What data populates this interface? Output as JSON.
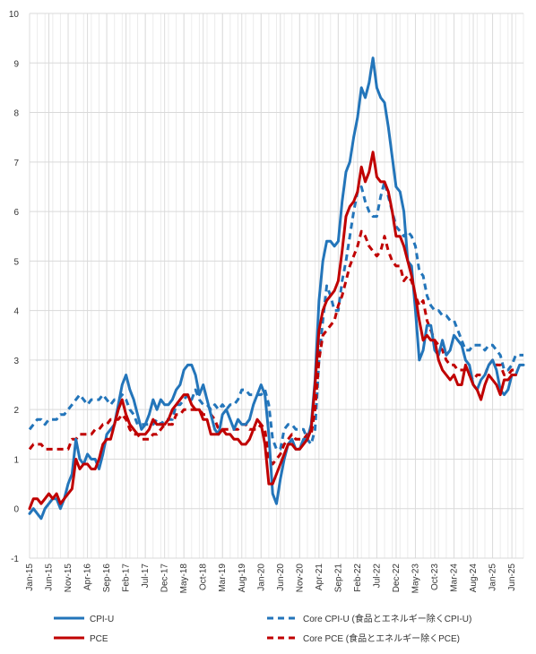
{
  "chart_data": {
    "type": "line",
    "title": "",
    "xlabel": "",
    "ylabel": "",
    "ylim": [
      -1,
      10
    ],
    "yticks": [
      -1,
      0,
      1,
      2,
      3,
      4,
      5,
      6,
      7,
      8,
      9,
      10
    ],
    "grid": true,
    "legend_position": "bottom",
    "x_tick_labels": [
      "Jan-15",
      "Jun-15",
      "Nov-15",
      "Apr-16",
      "Sep-16",
      "Feb-17",
      "Jul-17",
      "Dec-17",
      "May-18",
      "Oct-18",
      "Mar-19",
      "Aug-19",
      "Jan-20",
      "Jun-20",
      "Nov-20",
      "Apr-21",
      "Sep-21",
      "Feb-22",
      "Jul-22",
      "Dec-22",
      "May-23",
      "Oct-23",
      "Mar-24",
      "Aug-24",
      "Jan-25",
      "Jun-25"
    ],
    "series": [
      {
        "name": "CPI-U",
        "color": "#2375BA",
        "dashed": false,
        "values": [
          -0.1,
          0.0,
          -0.1,
          -0.2,
          0.0,
          0.1,
          0.2,
          0.2,
          0.0,
          0.2,
          0.5,
          0.7,
          1.4,
          1.0,
          0.9,
          1.1,
          1.0,
          1.0,
          0.8,
          1.1,
          1.5,
          1.6,
          1.7,
          2.1,
          2.5,
          2.7,
          2.4,
          2.2,
          1.9,
          1.6,
          1.7,
          1.9,
          2.2,
          2.0,
          2.2,
          2.1,
          2.1,
          2.2,
          2.4,
          2.5,
          2.8,
          2.9,
          2.9,
          2.7,
          2.3,
          2.5,
          2.2,
          1.9,
          1.6,
          1.5,
          1.9,
          2.0,
          1.8,
          1.6,
          1.8,
          1.7,
          1.7,
          1.8,
          2.1,
          2.3,
          2.5,
          2.3,
          1.5,
          0.3,
          0.1,
          0.6,
          1.0,
          1.3,
          1.4,
          1.2,
          1.2,
          1.4,
          1.4,
          1.7,
          2.6,
          4.2,
          5.0,
          5.4,
          5.4,
          5.3,
          5.4,
          6.2,
          6.8,
          7.0,
          7.5,
          7.9,
          8.5,
          8.3,
          8.6,
          9.1,
          8.5,
          8.3,
          8.2,
          7.7,
          7.1,
          6.5,
          6.4,
          6.0,
          5.0,
          4.9,
          4.0,
          3.0,
          3.2,
          3.7,
          3.7,
          3.2,
          3.1,
          3.4,
          3.1,
          3.2,
          3.5,
          3.4,
          3.3,
          3.0,
          2.9,
          2.5,
          2.4,
          2.6,
          2.7,
          2.9,
          3.0,
          2.8,
          2.4,
          2.3,
          2.4,
          2.7,
          2.7,
          2.9,
          2.9
        ]
      },
      {
        "name": "Core CPI-U (食品とエネルギー除くCPI-U)",
        "color": "#2375BA",
        "dashed": true,
        "values": [
          1.6,
          1.7,
          1.8,
          1.8,
          1.7,
          1.8,
          1.8,
          1.8,
          1.9,
          1.9,
          2.0,
          2.1,
          2.2,
          2.3,
          2.2,
          2.1,
          2.2,
          2.2,
          2.2,
          2.3,
          2.2,
          2.1,
          2.2,
          2.2,
          2.3,
          2.2,
          2.0,
          1.9,
          1.7,
          1.7,
          1.7,
          1.7,
          1.7,
          1.8,
          1.7,
          1.8,
          1.8,
          1.8,
          2.1,
          2.1,
          2.2,
          2.3,
          2.2,
          2.4,
          2.2,
          2.1,
          2.1,
          2.0,
          2.1,
          2.0,
          2.1,
          2.0,
          2.1,
          2.1,
          2.2,
          2.4,
          2.4,
          2.3,
          2.3,
          2.3,
          2.3,
          2.4,
          2.1,
          1.4,
          1.2,
          1.2,
          1.6,
          1.7,
          1.7,
          1.6,
          1.6,
          1.6,
          1.4,
          1.3,
          1.6,
          3.0,
          3.8,
          4.5,
          4.3,
          4.0,
          4.0,
          4.6,
          5.0,
          5.5,
          6.0,
          6.4,
          6.5,
          6.2,
          6.0,
          5.9,
          5.9,
          6.3,
          6.6,
          6.3,
          6.0,
          5.7,
          5.6,
          5.5,
          5.6,
          5.5,
          5.3,
          4.8,
          4.7,
          4.3,
          4.1,
          4.0,
          4.0,
          3.9,
          3.9,
          3.8,
          3.8,
          3.6,
          3.4,
          3.2,
          3.2,
          3.3,
          3.3,
          3.3,
          3.2,
          3.3,
          3.3,
          3.2,
          3.1,
          2.8,
          2.8,
          2.9,
          3.1,
          3.1,
          3.1
        ]
      },
      {
        "name": "PCE",
        "color": "#C00000",
        "dashed": false,
        "values": [
          0.0,
          0.2,
          0.2,
          0.1,
          0.2,
          0.3,
          0.2,
          0.3,
          0.1,
          0.2,
          0.3,
          0.4,
          1.0,
          0.8,
          0.9,
          0.9,
          0.8,
          0.8,
          1.0,
          1.3,
          1.4,
          1.4,
          1.7,
          2.0,
          2.2,
          1.9,
          1.7,
          1.6,
          1.5,
          1.5,
          1.5,
          1.6,
          1.8,
          1.7,
          1.7,
          1.7,
          1.8,
          2.0,
          2.1,
          2.2,
          2.3,
          2.3,
          2.1,
          2.0,
          2.0,
          1.8,
          1.8,
          1.5,
          1.5,
          1.5,
          1.6,
          1.5,
          1.5,
          1.4,
          1.4,
          1.3,
          1.3,
          1.4,
          1.6,
          1.8,
          1.7,
          1.3,
          0.5,
          0.5,
          0.7,
          0.9,
          1.1,
          1.3,
          1.3,
          1.2,
          1.2,
          1.3,
          1.4,
          1.6,
          2.5,
          3.6,
          4.0,
          4.2,
          4.3,
          4.4,
          4.6,
          5.2,
          5.9,
          6.1,
          6.2,
          6.4,
          6.9,
          6.6,
          6.8,
          7.2,
          6.7,
          6.6,
          6.6,
          6.4,
          6.0,
          5.5,
          5.5,
          5.3,
          5.0,
          4.7,
          4.3,
          3.8,
          3.4,
          3.5,
          3.4,
          3.4,
          3.0,
          2.8,
          2.7,
          2.6,
          2.7,
          2.5,
          2.5,
          2.9,
          2.7,
          2.5,
          2.4,
          2.2,
          2.5,
          2.7,
          2.6,
          2.5,
          2.3,
          2.6,
          2.6,
          2.7,
          2.7
        ]
      },
      {
        "name": "Core PCE (食品とエネルギー除くPCE)",
        "color": "#C00000",
        "dashed": true,
        "values": [
          1.2,
          1.3,
          1.3,
          1.3,
          1.2,
          1.2,
          1.2,
          1.2,
          1.2,
          1.2,
          1.2,
          1.4,
          1.4,
          1.5,
          1.5,
          1.5,
          1.5,
          1.6,
          1.6,
          1.7,
          1.7,
          1.8,
          1.8,
          1.8,
          1.9,
          1.8,
          1.6,
          1.5,
          1.5,
          1.4,
          1.4,
          1.4,
          1.5,
          1.5,
          1.6,
          1.7,
          1.7,
          1.7,
          1.9,
          1.9,
          2.0,
          2.0,
          2.0,
          2.0,
          2.0,
          1.9,
          1.9,
          1.9,
          1.8,
          1.6,
          1.6,
          1.6,
          1.6,
          1.6,
          1.6,
          1.7,
          1.7,
          1.6,
          1.6,
          1.6,
          1.7,
          1.6,
          1.0,
          0.9,
          1.0,
          1.1,
          1.3,
          1.4,
          1.5,
          1.4,
          1.4,
          1.4,
          1.5,
          1.5,
          2.0,
          3.0,
          3.5,
          3.6,
          3.7,
          3.8,
          4.1,
          4.3,
          4.6,
          4.9,
          5.1,
          5.3,
          5.6,
          5.5,
          5.3,
          5.2,
          5.1,
          5.2,
          5.5,
          5.2,
          5.0,
          4.9,
          4.9,
          4.6,
          4.7,
          4.6,
          4.3,
          4.1,
          4.2,
          3.8,
          3.6,
          3.4,
          3.3,
          3.2,
          3.0,
          2.9,
          2.9,
          2.8,
          2.8,
          2.8,
          2.7,
          2.6,
          2.7,
          2.7,
          2.7,
          2.9,
          3.0,
          2.9,
          2.9,
          2.7,
          2.7,
          2.8,
          2.8
        ]
      }
    ]
  }
}
